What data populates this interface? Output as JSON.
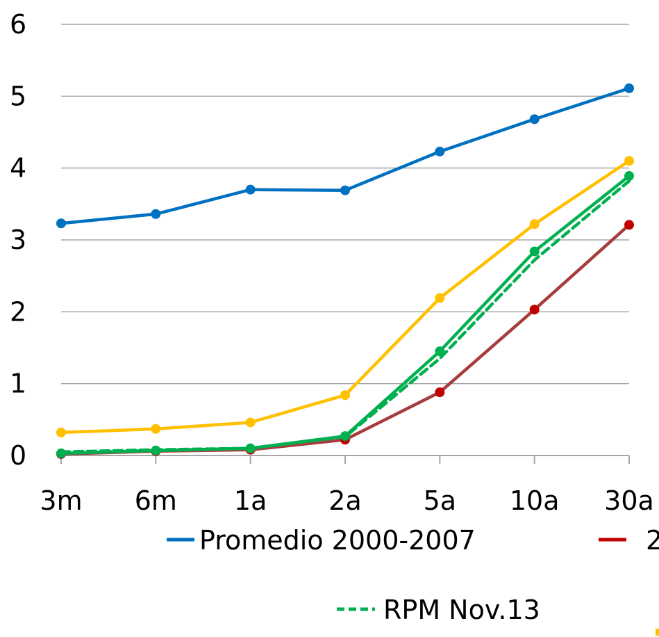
{
  "chart_data": {
    "type": "line",
    "title": "",
    "xlabel": "",
    "ylabel": "",
    "categories": [
      "3m",
      "6m",
      "1a",
      "2a",
      "5a",
      "10a",
      "30a"
    ],
    "ylim": [
      0,
      6
    ],
    "yticks": [
      "0",
      "1",
      "2",
      "3",
      "4",
      "5",
      "6"
    ],
    "grid": true,
    "legend_position": "bottom",
    "series": [
      {
        "name": "Promedio 2000-2007",
        "color": "#0070c0",
        "style": "solid",
        "markers": true,
        "values": [
          3.23,
          3.36,
          3.7,
          3.69,
          4.23,
          4.68,
          5.11
        ]
      },
      {
        "name": "2",
        "color": "#a83c3c",
        "marker_color": "#c00000",
        "style": "solid",
        "markers": true,
        "values": [
          0.02,
          0.06,
          0.08,
          0.22,
          0.88,
          2.03,
          3.21
        ]
      },
      {
        "name": "",
        "color": "#ffc000",
        "style": "solid",
        "markers": true,
        "values": [
          0.32,
          0.37,
          0.46,
          0.84,
          2.19,
          3.22,
          4.1
        ]
      },
      {
        "name": "",
        "color": "#00b050",
        "style": "solid",
        "markers": true,
        "values": [
          0.03,
          0.07,
          0.1,
          0.27,
          1.45,
          2.84,
          3.89
        ]
      },
      {
        "name": "RPM Nov.13",
        "color": "#00b050",
        "style": "dashed",
        "markers": false,
        "values": [
          0.05,
          0.08,
          0.1,
          0.26,
          1.35,
          2.72,
          3.82
        ]
      }
    ]
  },
  "legend": {
    "items": [
      {
        "label": "Promedio 2000-2007",
        "color": "#0070c0",
        "style": "solid"
      },
      {
        "label": "2",
        "color": "#c00000",
        "style": "solid"
      },
      {
        "label": "RPM Nov.13",
        "color": "#00b050",
        "style": "dashed"
      }
    ]
  }
}
